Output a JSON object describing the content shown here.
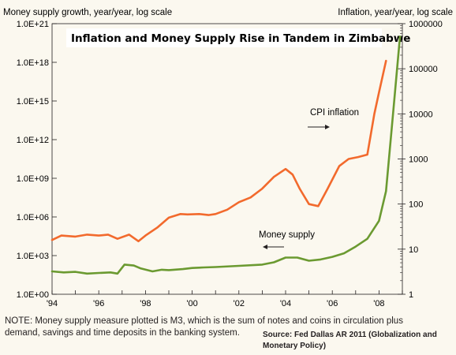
{
  "chart_data": {
    "type": "line",
    "title": "Inflation and Money Supply Rise in Tandem in Zimbabwe",
    "left_axis_label": "Money supply growth, year/year, log scale",
    "right_axis_label": "Inflation, year/year, log scale",
    "left_scale": "log",
    "right_scale": "log",
    "left_ylim": [
      1,
      1e+21
    ],
    "right_ylim": [
      1,
      1000000
    ],
    "left_ticks": [
      "1.0E+00",
      "1.0E+03",
      "1.0E+06",
      "1.0E+09",
      "1.0E+12",
      "1.0E+15",
      "1.0E+18",
      "1.0E+21"
    ],
    "right_ticks": [
      "1",
      "10",
      "100",
      "1000",
      "10000",
      "100000",
      "1000000"
    ],
    "x_ticks": [
      "'94",
      "'96",
      "'98",
      "'00",
      "'02",
      "'04",
      "'06",
      "'08"
    ],
    "x_range": [
      1994,
      2009
    ],
    "grid": false,
    "series": [
      {
        "name": "CPI inflation",
        "axis": "right",
        "color": "#f26a2d",
        "x": [
          1994.0,
          1994.4,
          1995.0,
          1995.5,
          1996.0,
          1996.4,
          1996.8,
          1997.3,
          1997.7,
          1998.0,
          1998.5,
          1999.0,
          1999.5,
          1999.8,
          2000.3,
          2000.7,
          2001.0,
          2001.5,
          2002.0,
          2002.5,
          2003.0,
          2003.5,
          2004.0,
          2004.3,
          2004.6,
          2005.0,
          2005.4,
          2005.8,
          2006.3,
          2006.7,
          2007.1,
          2007.5,
          2007.8,
          2008.0,
          2008.3
        ],
        "values": [
          16,
          20,
          19,
          21,
          20,
          21,
          17,
          21,
          15,
          20,
          30,
          50,
          60,
          59,
          60,
          57,
          60,
          75,
          110,
          140,
          220,
          400,
          600,
          450,
          220,
          100,
          90,
          220,
          700,
          1000,
          1100,
          1250,
          10000,
          30000,
          150000
        ]
      },
      {
        "name": "Money supply",
        "axis": "left",
        "color": "#6b9a31",
        "x": [
          1994.0,
          1994.5,
          1995.0,
          1995.5,
          1996.0,
          1996.5,
          1996.8,
          1997.1,
          1997.5,
          1997.8,
          1998.3,
          1998.7,
          1999.0,
          1999.6,
          2000.0,
          2000.5,
          2001.0,
          2002.0,
          2003.0,
          2003.5,
          2004.0,
          2004.5,
          2005.0,
          2005.5,
          2006.0,
          2006.5,
          2007.0,
          2007.5,
          2008.0,
          2008.3,
          2008.6,
          2008.9
        ],
        "values": [
          60,
          50,
          55,
          40,
          45,
          50,
          40,
          200,
          170,
          100,
          60,
          80,
          75,
          90,
          110,
          120,
          130,
          160,
          200,
          300,
          700,
          700,
          400,
          500,
          800,
          1500,
          5000,
          20000,
          500000,
          100000000.0,
          100000000000000.0,
          1e+20
        ]
      }
    ],
    "annotations": [
      {
        "text": "CPI inflation",
        "arrow": "right"
      },
      {
        "text": "Money supply",
        "arrow": "left"
      }
    ],
    "note": "NOTE: Money supply measure plotted is M3, which is the sum of notes and coins in circulation plus demand, savings and time deposits in the banking system.",
    "source": "Source: Fed Dallas AR 2011 (Globalization and Monetary Policy)"
  }
}
